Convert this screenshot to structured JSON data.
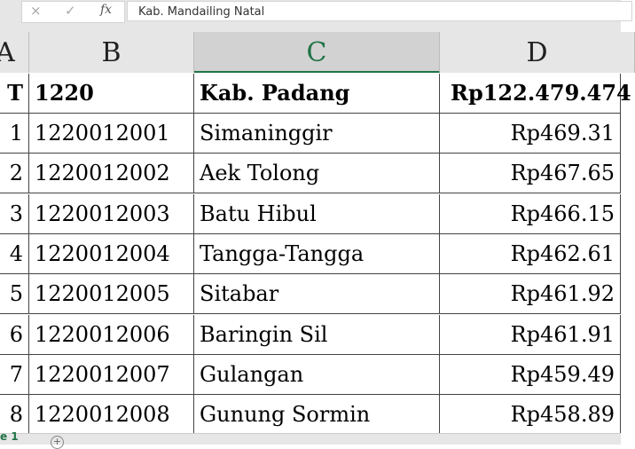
{
  "formula_bar": {
    "cancel_icon": "×",
    "enter_icon": "✓",
    "fx_label": "fx",
    "value": "Kab.  Mandailing  Natal"
  },
  "columns": [
    "A",
    "B",
    "C",
    "D"
  ],
  "selected_column": "C",
  "header_row": {
    "a": "T",
    "b": "1220",
    "c": "Kab.  Padang",
    "d": "Rp122.479.474"
  },
  "rows": [
    {
      "a": "1",
      "b": "1220012001",
      "c": "Simaninggir",
      "d": "Rp469.31"
    },
    {
      "a": "2",
      "b": "1220012002",
      "c": "Aek Tolong",
      "d": "Rp467.65"
    },
    {
      "a": "3",
      "b": "1220012003",
      "c": "Batu Hibul",
      "d": "Rp466.15"
    },
    {
      "a": "4",
      "b": "1220012004",
      "c": "Tangga-Tangga",
      "d": "Rp462.61"
    },
    {
      "a": "5",
      "b": "1220012005",
      "c": "Sitabar",
      "d": "Rp461.92"
    },
    {
      "a": "6",
      "b": "1220012006",
      "c": "Baringin Sil",
      "d": "Rp461.91"
    },
    {
      "a": "7",
      "b": "1220012007",
      "c": "Gulangan",
      "d": "Rp459.49"
    },
    {
      "a": "8",
      "b": "1220012008",
      "c": "Gunung Sormin",
      "d": "Rp458.89"
    }
  ],
  "sheet_tab": "e 1",
  "add_sheet_icon": "+",
  "accent": "#217346"
}
